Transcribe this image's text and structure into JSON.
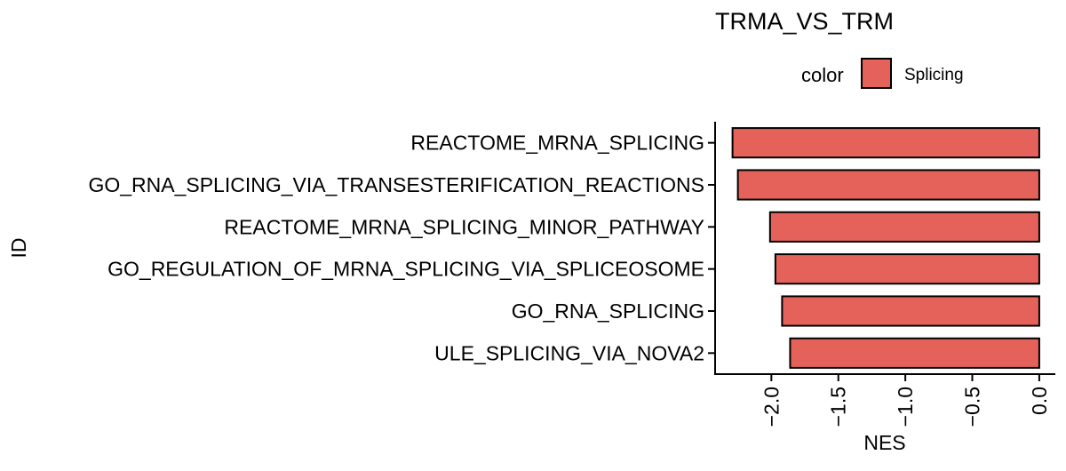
{
  "chart_data": {
    "type": "bar",
    "orientation": "horizontal",
    "title": "TRMA_VS_TRM",
    "xlabel": "NES",
    "ylabel": "ID",
    "categories": [
      "REACTOME_MRNA_SPLICING",
      "GO_RNA_SPLICING_VIA_TRANSESTERIFICATION_REACTIONS",
      "REACTOME_MRNA_SPLICING_MINOR_PATHWAY",
      "GO_REGULATION_OF_MRNA_SPLICING_VIA_SPLICEOSOME",
      "GO_RNA_SPLICING",
      "ULE_SPLICING_VIA_NOVA2"
    ],
    "series": [
      {
        "name": "Splicing",
        "color": "#E5625A",
        "values": [
          -2.29,
          -2.25,
          -2.01,
          -1.97,
          -1.92,
          -1.86
        ]
      }
    ],
    "xlim": [
      -2.42,
      0.12
    ],
    "xticks": [
      -2.0,
      -1.5,
      -1.0,
      -0.5,
      0.0
    ],
    "xtick_labels": [
      "−2.0",
      "−1.5",
      "−1.0",
      "−0.5",
      "0.0"
    ],
    "legend": {
      "title": "color",
      "placement": "top",
      "entries": [
        "Splicing"
      ]
    },
    "grid": false
  }
}
